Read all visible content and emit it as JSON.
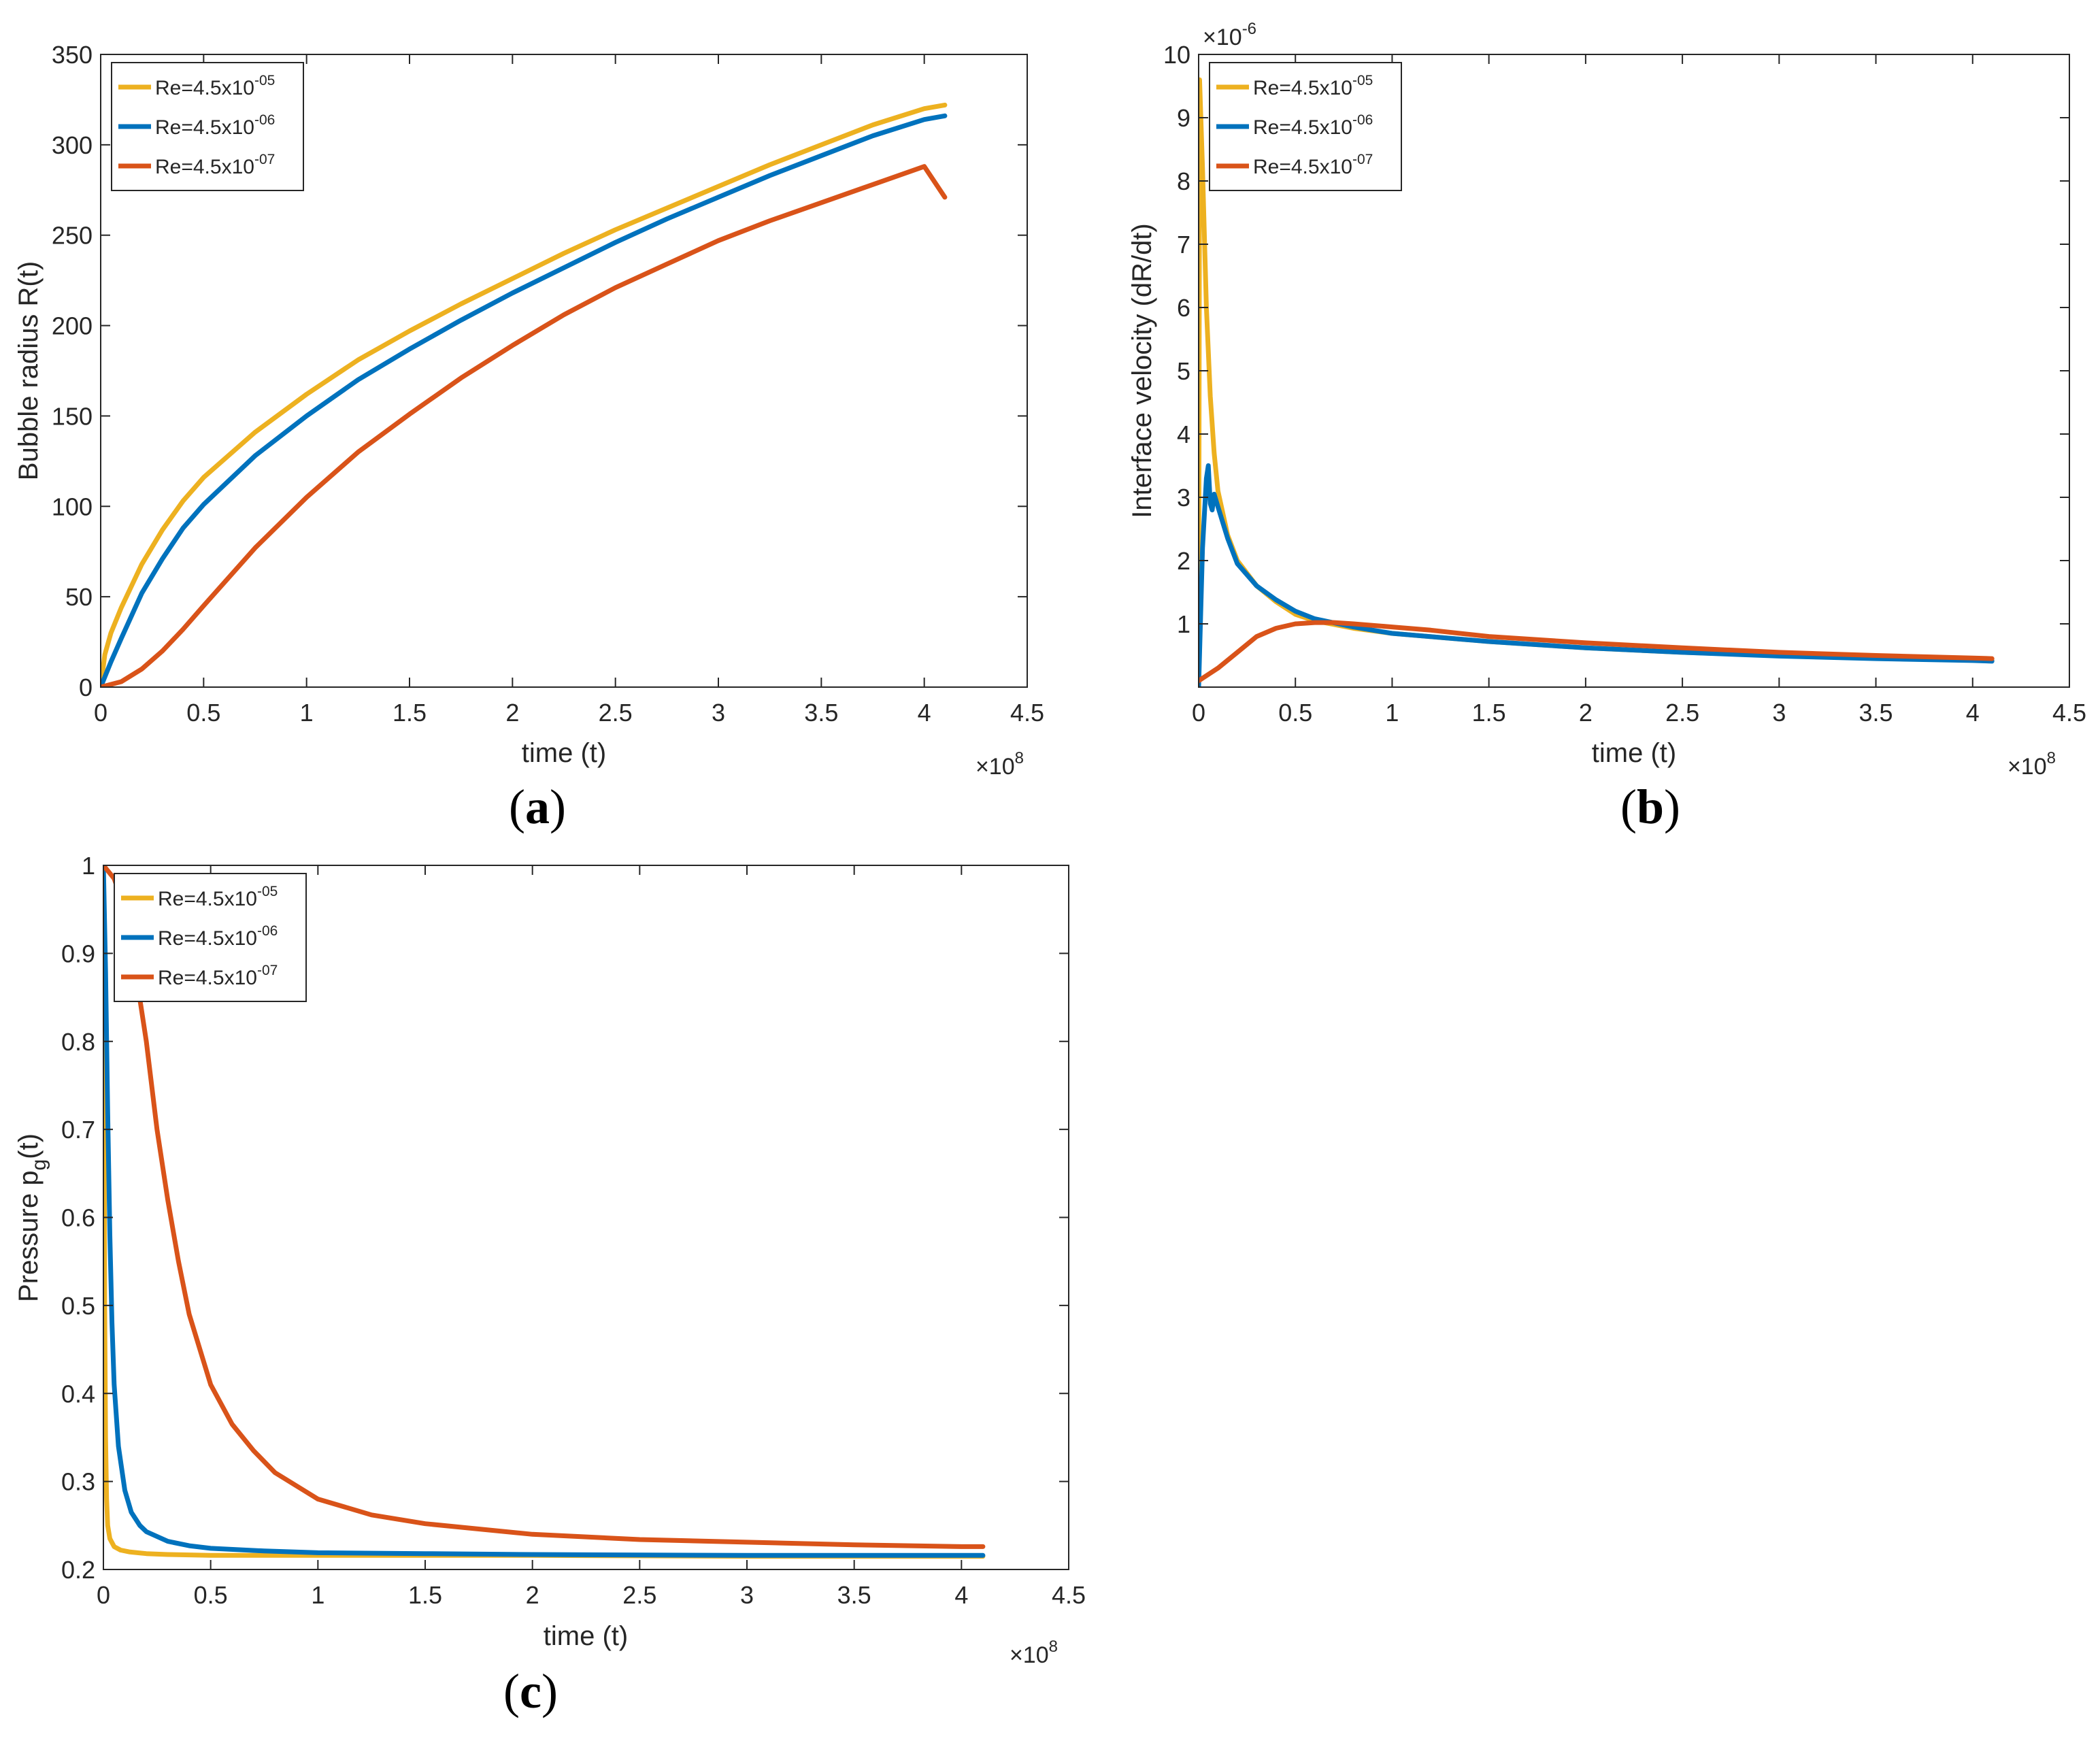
{
  "colors": {
    "yellow": "#EDB120",
    "blue": "#0072BD",
    "red": "#D95319",
    "axis": "#262626",
    "background": "#FFFFFF"
  },
  "chart_data": [
    {
      "id": "a",
      "type": "line",
      "panel_label": "a",
      "xlabel": "time (t)",
      "ylabel": "Bubble radius R(t)",
      "xlim": [
        0,
        4.5
      ],
      "ylim": [
        0,
        350
      ],
      "x_multiplier": "×10",
      "x_multiplier_exp": "8",
      "y_multiplier": "",
      "y_multiplier_exp": "",
      "xticks": [
        0,
        0.5,
        1,
        1.5,
        2,
        2.5,
        3,
        3.5,
        4,
        4.5
      ],
      "xtick_labels": [
        "0",
        "0.5",
        "1",
        "1.5",
        "2",
        "2.5",
        "3",
        "3.5",
        "4",
        "4.5"
      ],
      "yticks": [
        0,
        50,
        100,
        150,
        200,
        250,
        300,
        350
      ],
      "ytick_labels": [
        "0",
        "50",
        "100",
        "150",
        "200",
        "250",
        "300",
        "350"
      ],
      "legend_position": "top-left",
      "series": [
        {
          "name": "Re=4.5x10",
          "exp": "-05",
          "color": "#EDB120",
          "x": [
            0,
            0.02,
            0.05,
            0.1,
            0.2,
            0.3,
            0.4,
            0.5,
            0.75,
            1,
            1.25,
            1.5,
            1.75,
            2,
            2.25,
            2.5,
            2.75,
            3,
            3.25,
            3.5,
            3.75,
            4,
            4.1
          ],
          "y": [
            0,
            18,
            30,
            44,
            68,
            87,
            103,
            116,
            141,
            162,
            181,
            197,
            212,
            226,
            240,
            253,
            265,
            277,
            289,
            300,
            311,
            320,
            322
          ]
        },
        {
          "name": "Re=4.5x10",
          "exp": "-06",
          "color": "#0072BD",
          "x": [
            0,
            0.05,
            0.1,
            0.2,
            0.3,
            0.4,
            0.5,
            0.75,
            1,
            1.25,
            1.5,
            1.75,
            2,
            2.25,
            2.5,
            2.75,
            3,
            3.25,
            3.5,
            3.75,
            4,
            4.1
          ],
          "y": [
            0,
            14,
            27,
            52,
            71,
            88,
            101,
            128,
            150,
            170,
            187,
            203,
            218,
            232,
            246,
            259,
            271,
            283,
            294,
            305,
            314,
            316
          ]
        },
        {
          "name": "Re=4.5x10",
          "exp": "-07",
          "color": "#D95319",
          "x": [
            0,
            0.1,
            0.2,
            0.3,
            0.4,
            0.5,
            0.75,
            1,
            1.25,
            1.5,
            1.75,
            2,
            2.25,
            2.5,
            2.75,
            3,
            3.25,
            3.5,
            3.75,
            4,
            4.1
          ],
          "y": [
            0,
            3,
            10,
            20,
            32,
            45,
            77,
            105,
            130,
            151,
            171,
            189,
            206,
            221,
            234,
            247,
            258,
            268,
            278,
            288,
            271
          ]
        }
      ]
    },
    {
      "id": "b",
      "type": "line",
      "panel_label": "b",
      "xlabel": "time (t)",
      "ylabel": "Interface velocity (dR/dt)",
      "xlim": [
        0,
        4.5
      ],
      "ylim": [
        0,
        10
      ],
      "x_multiplier": "×10",
      "x_multiplier_exp": "8",
      "y_multiplier": "×10",
      "y_multiplier_exp": "-6",
      "xticks": [
        0,
        0.5,
        1,
        1.5,
        2,
        2.5,
        3,
        3.5,
        4,
        4.5
      ],
      "xtick_labels": [
        "0",
        "0.5",
        "1",
        "1.5",
        "2",
        "2.5",
        "3",
        "3.5",
        "4",
        "4.5"
      ],
      "yticks": [
        1,
        2,
        3,
        4,
        5,
        6,
        7,
        8,
        9,
        10
      ],
      "ytick_labels": [
        "1",
        "2",
        "3",
        "4",
        "5",
        "6",
        "7",
        "8",
        "9",
        "10"
      ],
      "legend_position": "top-left",
      "series": [
        {
          "name": "Re=4.5x10",
          "exp": "-05",
          "color": "#EDB120",
          "x": [
            0,
            0.005,
            0.02,
            0.04,
            0.06,
            0.08,
            0.1,
            0.15,
            0.2,
            0.3,
            0.4,
            0.5,
            0.6,
            0.8,
            1,
            1.5,
            2,
            2.5,
            3,
            3.5,
            4,
            4.1
          ],
          "y": [
            0,
            9.6,
            8.2,
            6.0,
            4.6,
            3.7,
            3.1,
            2.4,
            2.0,
            1.6,
            1.35,
            1.15,
            1.05,
            0.93,
            0.85,
            0.72,
            0.62,
            0.55,
            0.5,
            0.46,
            0.43,
            0.42
          ]
        },
        {
          "name": "Re=4.5x10",
          "exp": "-06",
          "color": "#0072BD",
          "x": [
            0,
            0.02,
            0.04,
            0.05,
            0.06,
            0.07,
            0.08,
            0.1,
            0.15,
            0.2,
            0.3,
            0.4,
            0.5,
            0.6,
            0.8,
            1,
            1.5,
            2,
            2.5,
            3,
            3.5,
            4,
            4.1
          ],
          "y": [
            0,
            2.2,
            3.3,
            3.5,
            2.9,
            2.8,
            3.05,
            2.85,
            2.35,
            1.95,
            1.6,
            1.38,
            1.2,
            1.08,
            0.95,
            0.85,
            0.72,
            0.62,
            0.55,
            0.49,
            0.45,
            0.42,
            0.41
          ]
        },
        {
          "name": "Re=4.5x10",
          "exp": "-07",
          "color": "#D95319",
          "x": [
            0,
            0.1,
            0.2,
            0.3,
            0.4,
            0.5,
            0.6,
            0.7,
            0.8,
            1,
            1.2,
            1.5,
            2,
            2.5,
            3,
            3.5,
            4,
            4.1
          ],
          "y": [
            0.1,
            0.3,
            0.55,
            0.8,
            0.93,
            1.0,
            1.02,
            1.02,
            1.0,
            0.95,
            0.9,
            0.8,
            0.7,
            0.62,
            0.55,
            0.5,
            0.46,
            0.45
          ]
        }
      ]
    },
    {
      "id": "c",
      "type": "line",
      "panel_label": "c",
      "xlabel": "time (t)",
      "ylabel": "Pressure p",
      "ylabel_sub": "g",
      "ylabel_suffix": "(t)",
      "xlim": [
        0,
        4.5
      ],
      "ylim": [
        0.2,
        1
      ],
      "x_multiplier": "×10",
      "x_multiplier_exp": "8",
      "y_multiplier": "",
      "y_multiplier_exp": "",
      "xticks": [
        0,
        0.5,
        1,
        1.5,
        2,
        2.5,
        3,
        3.5,
        4,
        4.5
      ],
      "xtick_labels": [
        "0",
        "0.5",
        "1",
        "1.5",
        "2",
        "2.5",
        "3",
        "3.5",
        "4",
        "4.5"
      ],
      "yticks": [
        0.2,
        0.3,
        0.4,
        0.5,
        0.6,
        0.7,
        0.8,
        0.9,
        1
      ],
      "ytick_labels": [
        "0.2",
        "0.3",
        "0.4",
        "0.5",
        "0.6",
        "0.7",
        "0.8",
        "0.9",
        "1"
      ],
      "legend_position": "top-left",
      "series": [
        {
          "name": "Re=4.5x10",
          "exp": "-05",
          "color": "#EDB120",
          "x": [
            0,
            0.003,
            0.006,
            0.01,
            0.015,
            0.02,
            0.03,
            0.05,
            0.08,
            0.12,
            0.2,
            0.3,
            0.5,
            1,
            2,
            3,
            4.1
          ],
          "y": [
            1,
            0.75,
            0.5,
            0.35,
            0.28,
            0.25,
            0.235,
            0.226,
            0.222,
            0.22,
            0.218,
            0.217,
            0.216,
            0.216,
            0.216,
            0.215,
            0.215
          ]
        },
        {
          "name": "Re=4.5x10",
          "exp": "-06",
          "color": "#0072BD",
          "x": [
            0,
            0.01,
            0.02,
            0.03,
            0.04,
            0.05,
            0.07,
            0.1,
            0.13,
            0.17,
            0.2,
            0.3,
            0.4,
            0.5,
            0.75,
            1,
            1.5,
            2,
            3,
            4.1
          ],
          "y": [
            1,
            0.88,
            0.72,
            0.58,
            0.48,
            0.41,
            0.34,
            0.29,
            0.265,
            0.25,
            0.243,
            0.232,
            0.227,
            0.224,
            0.221,
            0.219,
            0.218,
            0.217,
            0.216,
            0.216
          ]
        },
        {
          "name": "Re=4.5x10",
          "exp": "-07",
          "color": "#D95319",
          "x": [
            0,
            0.05,
            0.1,
            0.15,
            0.2,
            0.25,
            0.3,
            0.35,
            0.4,
            0.5,
            0.6,
            0.7,
            0.8,
            1,
            1.25,
            1.5,
            2,
            2.5,
            3,
            3.5,
            4,
            4.1
          ],
          "y": [
            1,
            0.985,
            0.95,
            0.88,
            0.8,
            0.7,
            0.62,
            0.55,
            0.49,
            0.41,
            0.365,
            0.335,
            0.31,
            0.28,
            0.262,
            0.252,
            0.24,
            0.234,
            0.231,
            0.228,
            0.226,
            0.226
          ]
        }
      ]
    }
  ]
}
